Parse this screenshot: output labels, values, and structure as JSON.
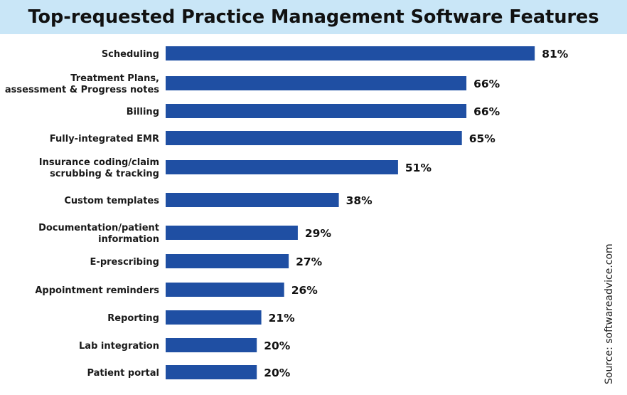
{
  "chart_data": {
    "type": "bar",
    "orientation": "horizontal",
    "title": "Top-requested Practice Management Software Features",
    "categories": [
      [
        "Scheduling"
      ],
      [
        "Treatment Plans,",
        "assessment & Progress notes"
      ],
      [
        "Billing"
      ],
      [
        "Fully-integrated EMR"
      ],
      [
        "Insurance coding/claim",
        "scrubbing & tracking"
      ],
      [
        "Custom templates"
      ],
      [
        "Documentation/patient",
        "information"
      ],
      [
        "E-prescribing"
      ],
      [
        "Appointment reminders"
      ],
      [
        "Reporting"
      ],
      [
        "Lab integration"
      ],
      [
        "Patient portal"
      ]
    ],
    "values": [
      81,
      66,
      66,
      65,
      51,
      38,
      29,
      27,
      26,
      21,
      20,
      20
    ],
    "value_labels": [
      "81%",
      "66%",
      "66%",
      "65%",
      "51%",
      "38%",
      "29%",
      "27%",
      "26%",
      "21%",
      "20%",
      "20%"
    ],
    "unit": "%",
    "bar_color": "#1f4fa3",
    "title_band_color": "#c9e6f7",
    "grid": false,
    "legend": false
  },
  "source": "Source: softwareadvice.com"
}
